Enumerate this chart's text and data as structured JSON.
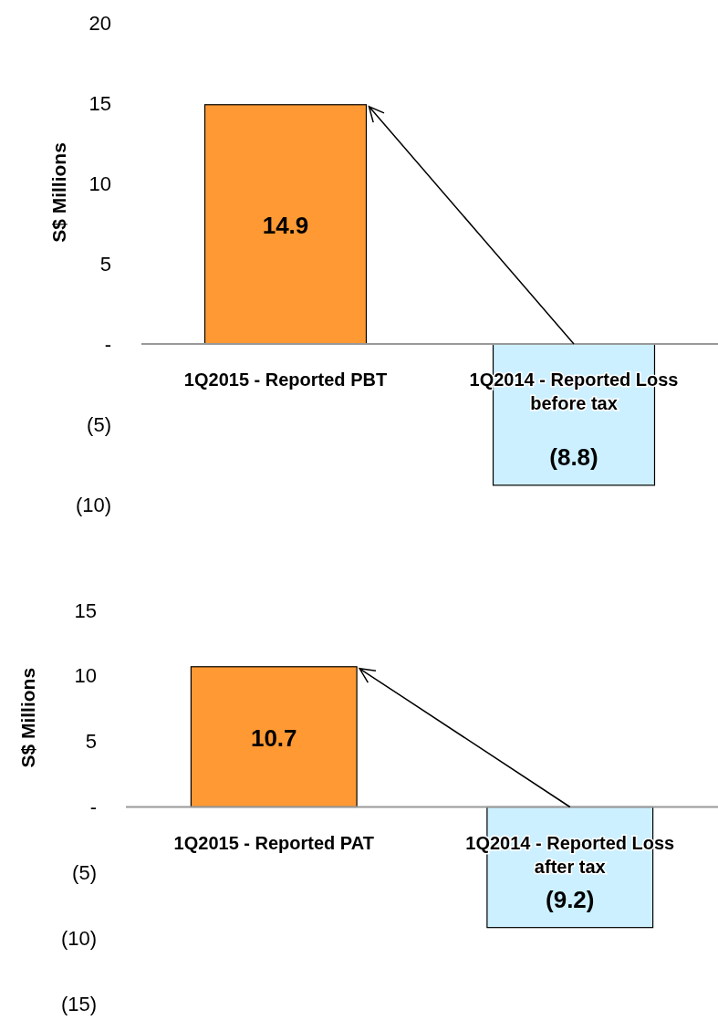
{
  "chart_data": [
    {
      "type": "bar",
      "ylabel": "S$ Millions",
      "categories": [
        "1Q2015 - Reported PBT",
        "1Q2014 - Reported Loss before tax"
      ],
      "values": [
        14.9,
        -8.8
      ],
      "colors": [
        "#ff9933",
        "#ccf0ff"
      ],
      "value_labels": [
        "14.9",
        "(8.8)"
      ],
      "ylim": [
        -10,
        20
      ],
      "yticks": [
        {
          "value": -10,
          "label": "(10)"
        },
        {
          "value": -5,
          "label": "(5)"
        },
        {
          "value": 0,
          "label": "-"
        },
        5,
        10,
        15,
        20
      ]
    },
    {
      "type": "bar",
      "ylabel": "S$ Millions",
      "categories": [
        "1Q2015 - Reported PAT",
        "1Q2014 - Reported Loss after tax"
      ],
      "values": [
        10.7,
        -9.2
      ],
      "colors": [
        "#ff9933",
        "#ccf0ff"
      ],
      "value_labels": [
        "10.7",
        "(9.2)"
      ],
      "ylim": [
        -15,
        15
      ],
      "yticks": [
        {
          "value": -15,
          "label": "(15)"
        },
        {
          "value": -10,
          "label": "(10)"
        },
        {
          "value": -5,
          "label": "(5)"
        },
        {
          "value": 0,
          "label": "-"
        },
        5,
        10,
        15
      ]
    }
  ]
}
